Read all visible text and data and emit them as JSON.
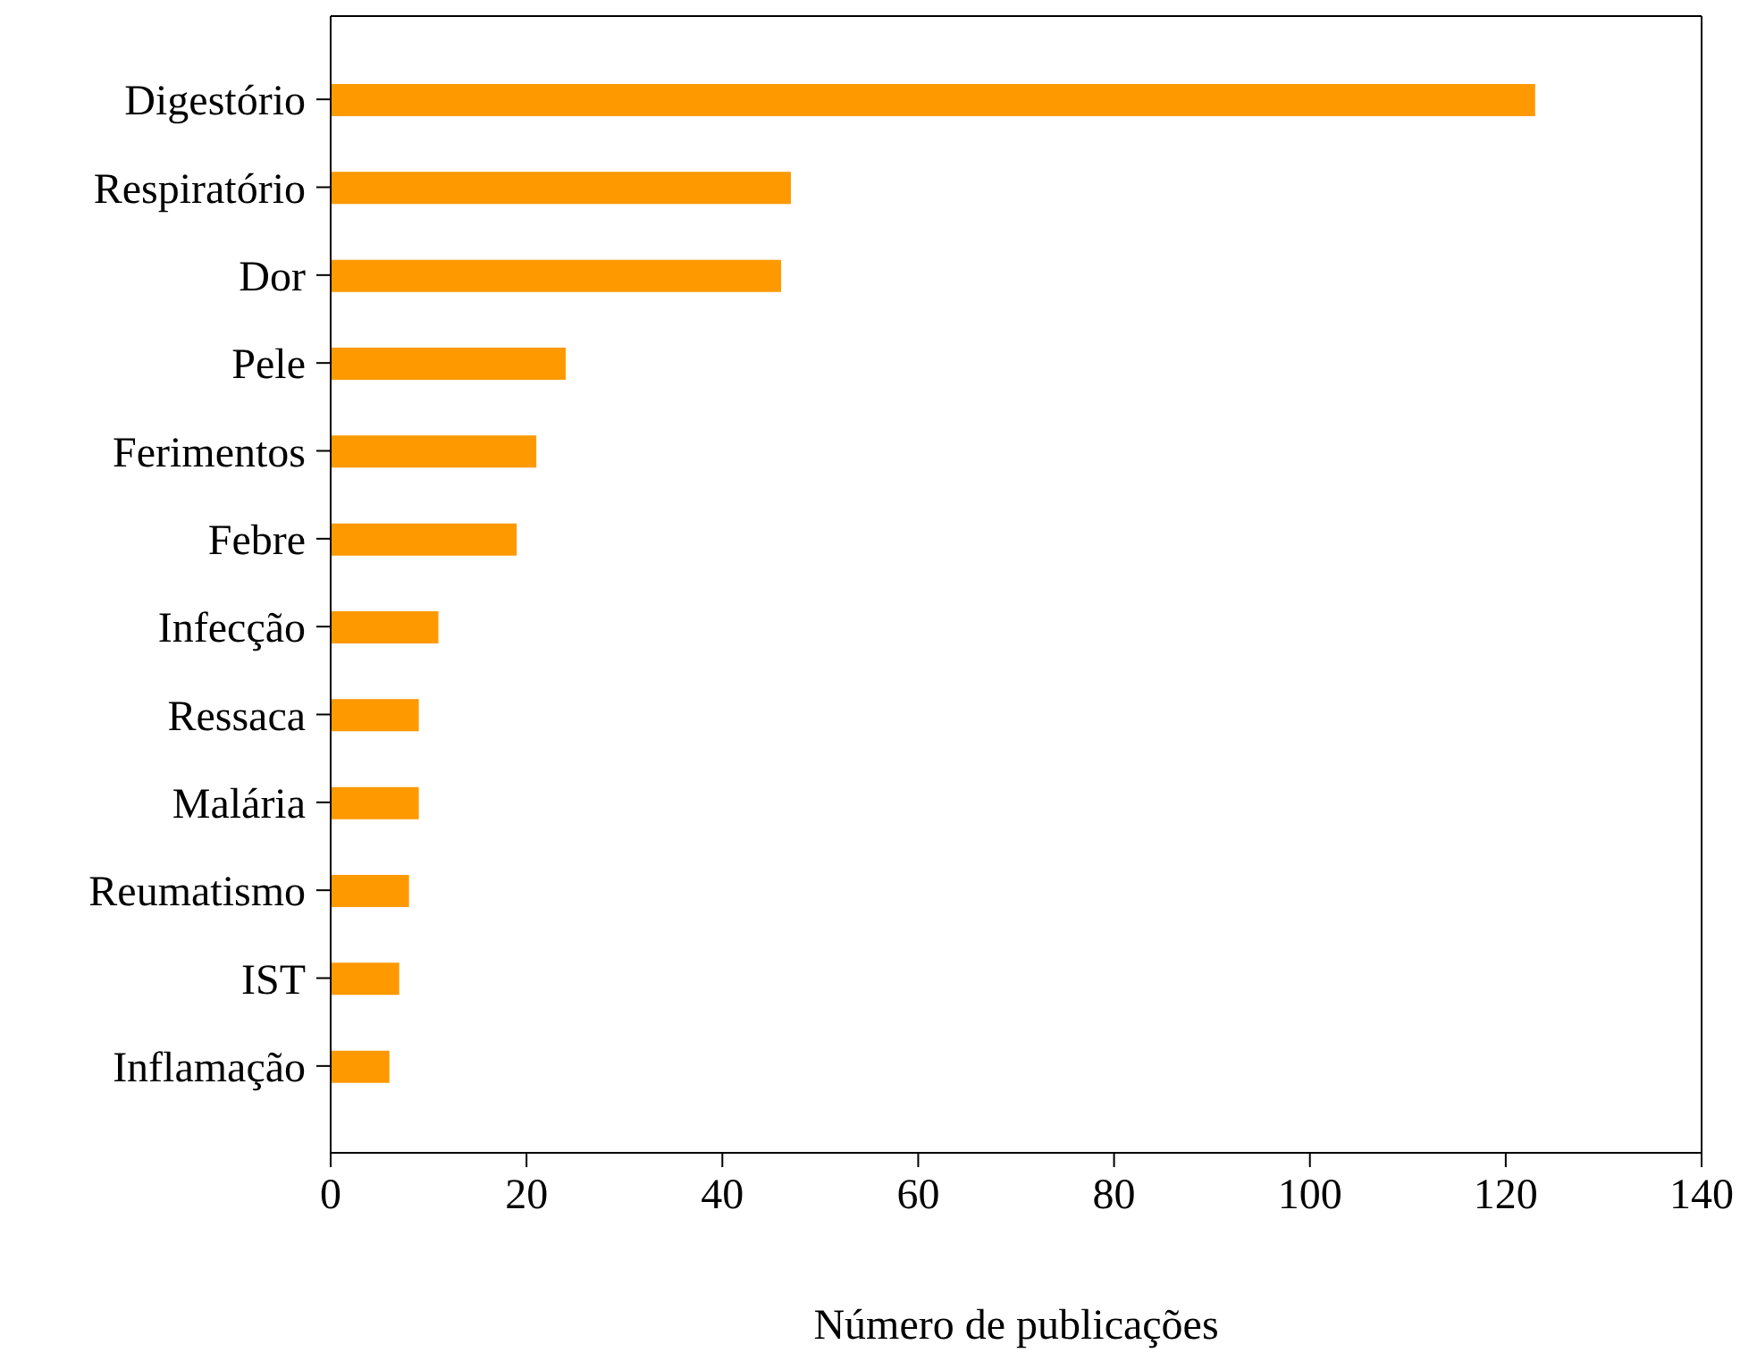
{
  "chart_data": {
    "type": "bar",
    "orientation": "horizontal",
    "xlabel": "Número de publicações",
    "categories": [
      "Digestório",
      "Respiratório",
      "Dor",
      "Pele",
      "Ferimentos",
      "Febre",
      "Infecção",
      "Ressaca",
      "Malária",
      "Reumatismo",
      "IST",
      "Inflamação"
    ],
    "values": [
      123,
      47,
      46,
      24,
      21,
      19,
      11,
      9,
      9,
      8,
      7,
      6
    ],
    "color": "#ff9900",
    "xlim": [
      0,
      140
    ],
    "xticks": [
      0,
      20,
      40,
      60,
      80,
      100,
      120,
      140
    ],
    "grid": false
  }
}
